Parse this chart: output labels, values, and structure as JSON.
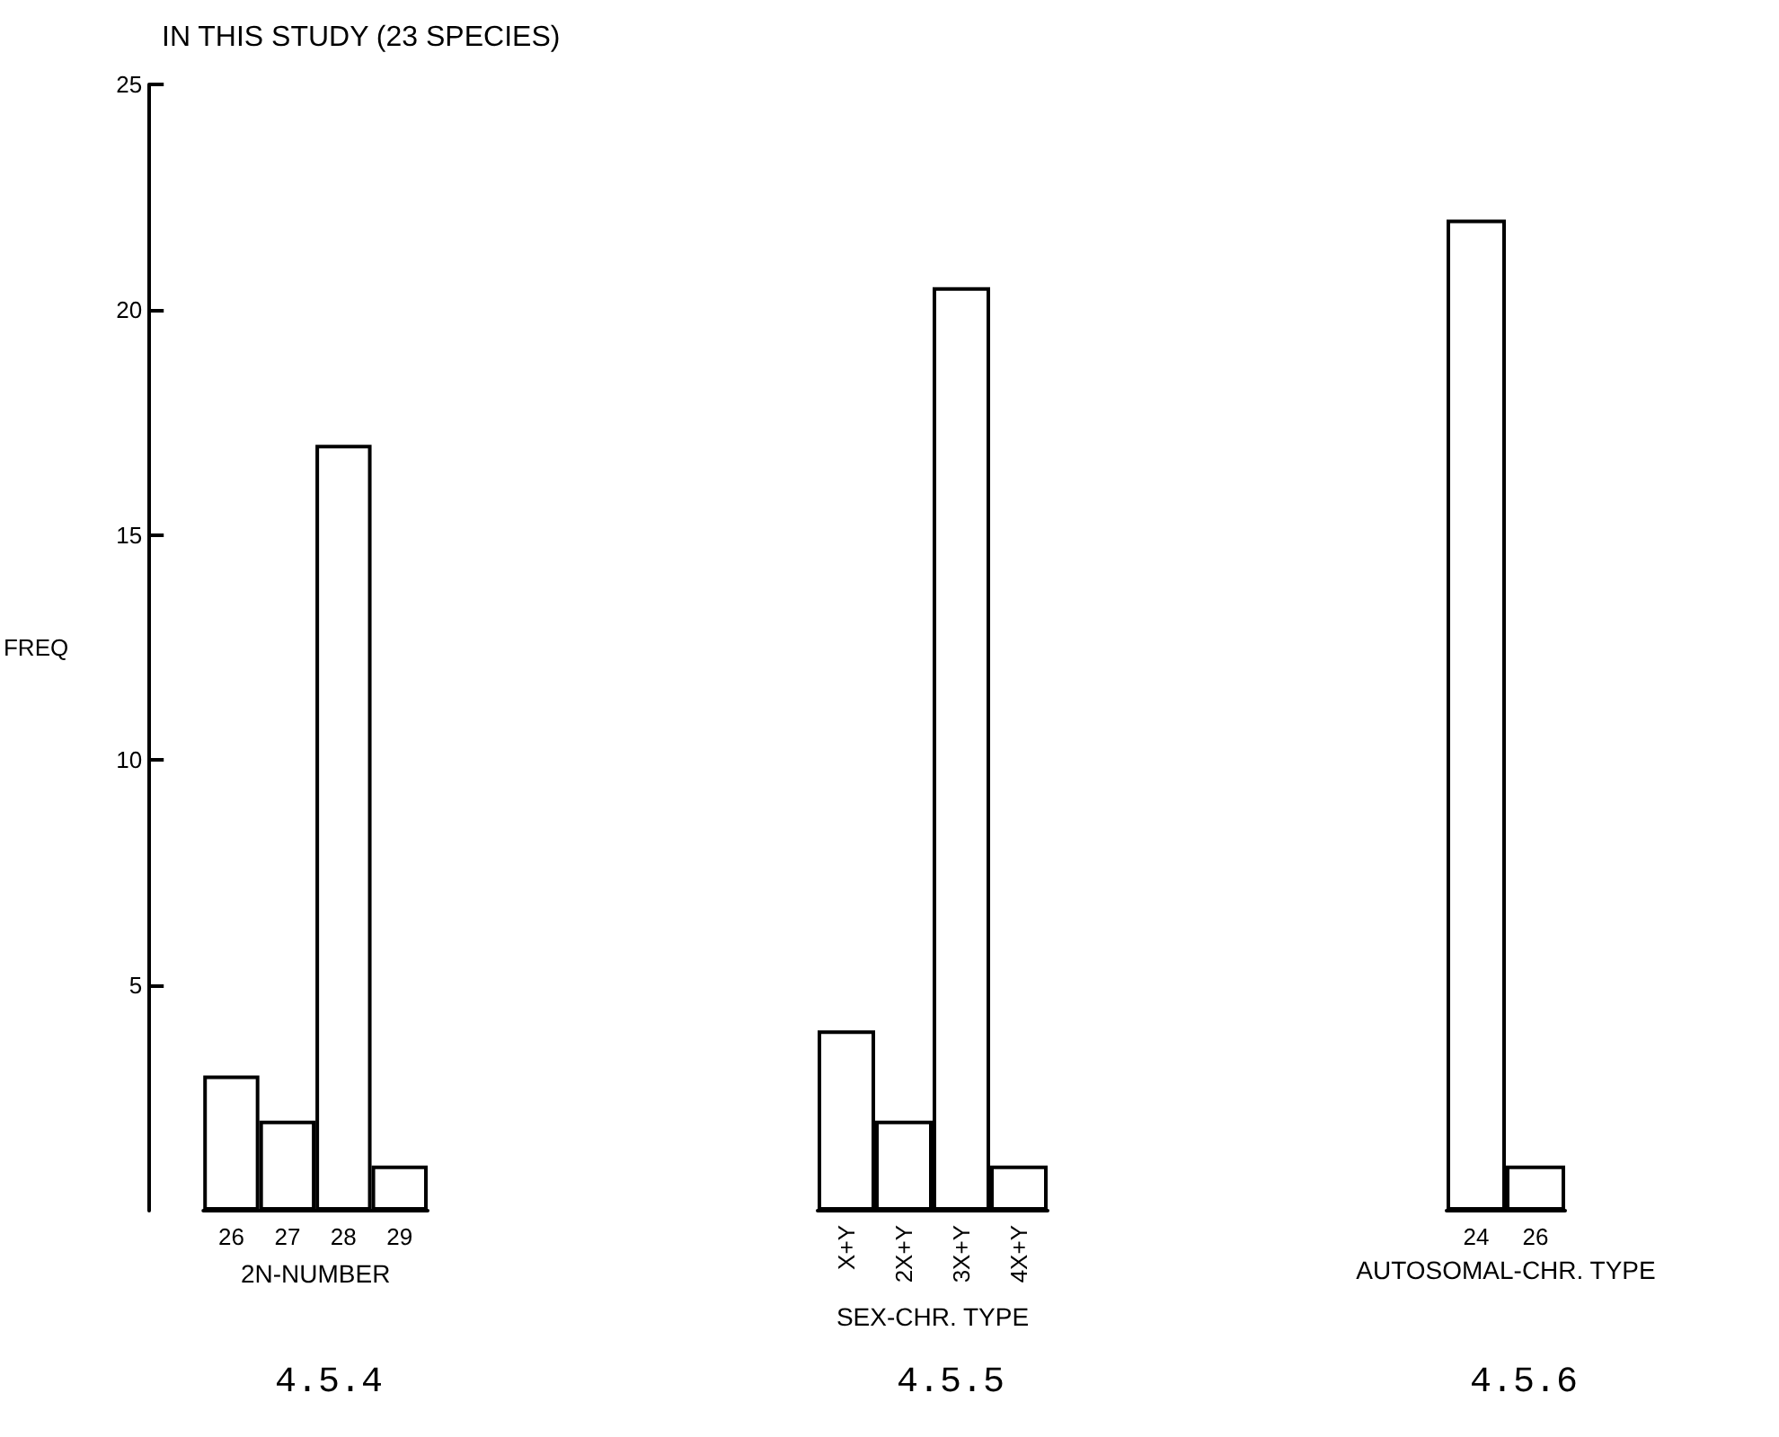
{
  "chart_data": [
    {
      "type": "bar",
      "title": "IN THIS STUDY (23 SPECIES)",
      "ylabel": "FREQ",
      "xlabel": "2N-NUMBER",
      "categories": [
        "26",
        "27",
        "28",
        "29"
      ],
      "values": [
        3,
        2,
        17,
        1
      ],
      "ylim": [
        0,
        25
      ],
      "yticks": [
        5,
        10,
        15,
        20,
        25
      ],
      "annotations": [
        "4.5.4"
      ]
    },
    {
      "type": "bar",
      "xlabel": "SEX-CHR. TYPE",
      "categories": [
        "X+Y",
        "2X+Y",
        "3X+Y",
        "4X+Y"
      ],
      "values": [
        4,
        2,
        20.5,
        1
      ],
      "ylim": [
        0,
        25
      ],
      "tick_labels": "x",
      "annotations": [
        "4.5.5"
      ]
    },
    {
      "type": "bar",
      "xlabel": "AUTOSOMAL-CHR. TYPE",
      "categories": [
        "24",
        "26"
      ],
      "values": [
        22,
        1
      ],
      "ylim": [
        0,
        25
      ],
      "tick_labels": "x",
      "annotations": [
        "4.5.6"
      ]
    }
  ]
}
